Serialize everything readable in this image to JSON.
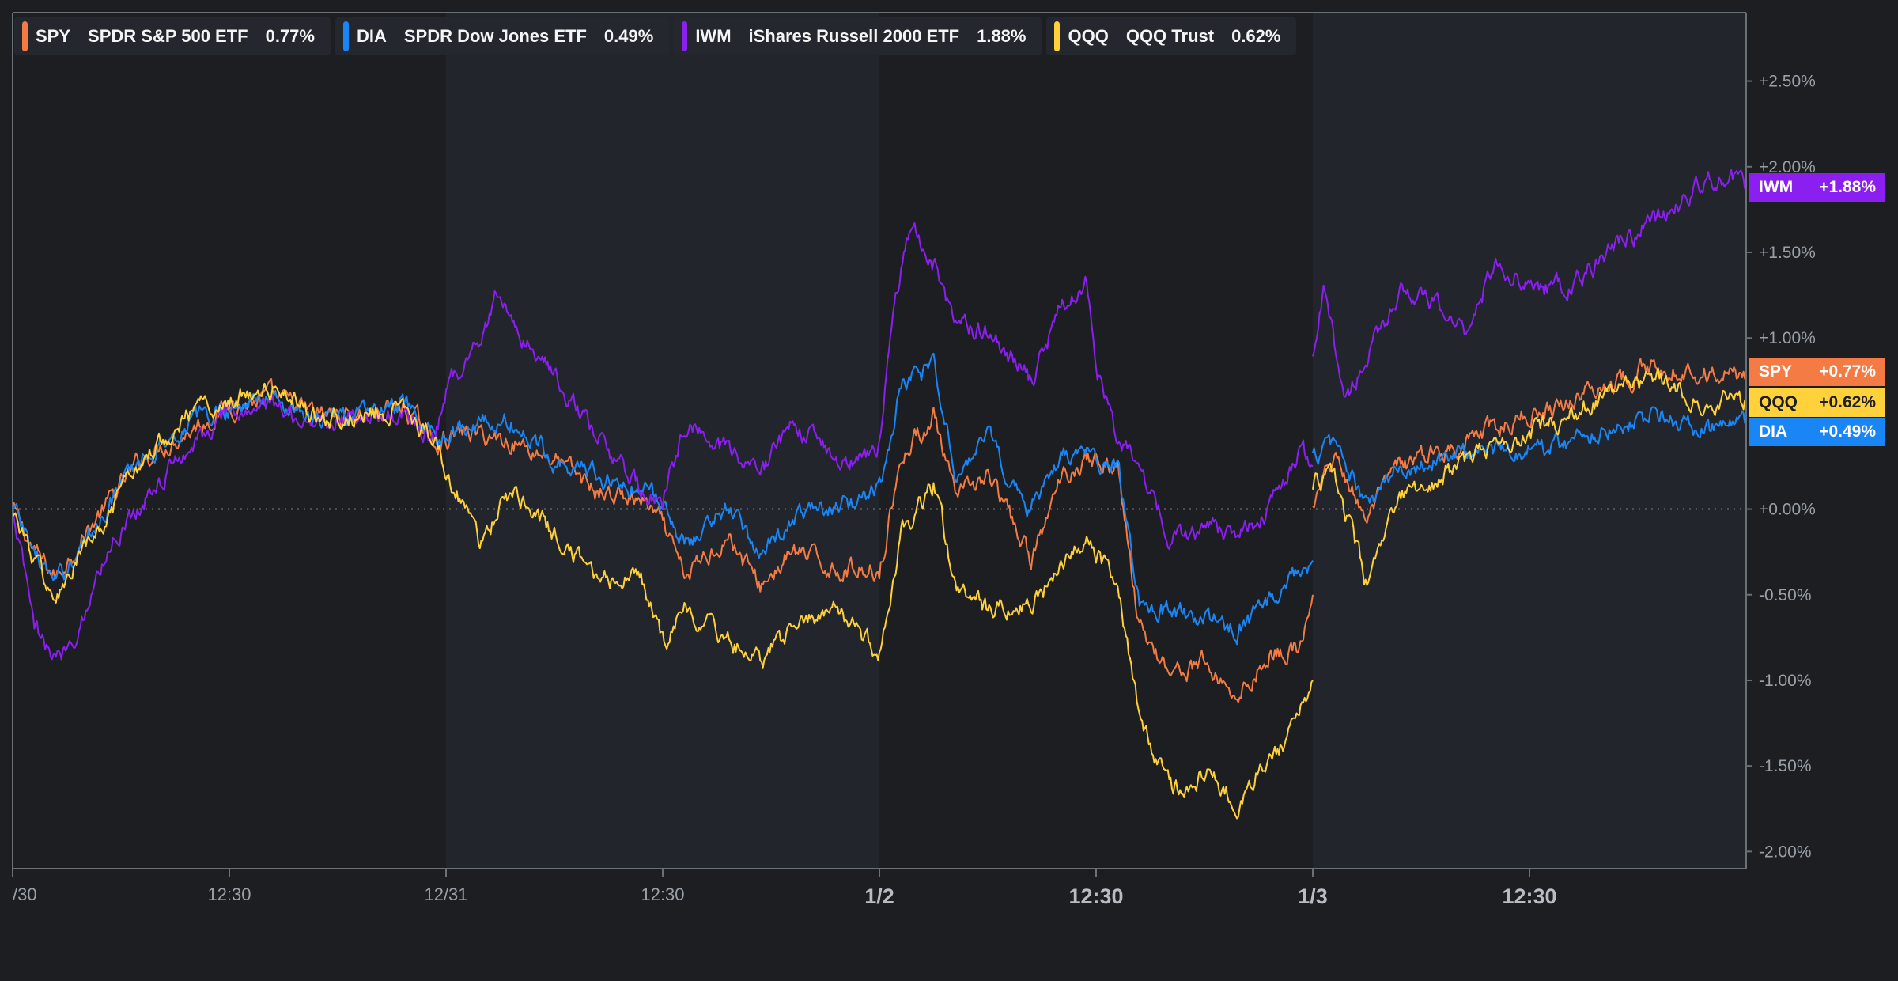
{
  "legend": [
    {
      "ticker": "SPY",
      "name": "SPDR S&P 500 ETF",
      "change": "0.77%",
      "color": "#f47b43"
    },
    {
      "ticker": "DIA",
      "name": "SPDR Dow Jones ETF",
      "change": "0.49%",
      "color": "#1a86f5"
    },
    {
      "ticker": "IWM",
      "name": "iShares Russell 2000 ETF",
      "change": "1.88%",
      "color": "#8a1ff0"
    },
    {
      "ticker": "QQQ",
      "name": "QQQ Trust",
      "change": "0.62%",
      "color": "#ffd13a"
    }
  ],
  "end_labels": [
    {
      "ticker": "IWM",
      "value": "+1.88%",
      "color": "#8a1ff0",
      "text_color": "#ffffff",
      "y_value": 1.88
    },
    {
      "ticker": "SPY",
      "value": "+0.77%",
      "color": "#f47b43",
      "text_color": "#ffffff",
      "y_value": 0.8
    },
    {
      "ticker": "QQQ",
      "value": "+0.62%",
      "color": "#ffd13a",
      "text_color": "#1c1e22",
      "y_value": 0.62
    },
    {
      "ticker": "DIA",
      "value": "+0.49%",
      "color": "#1a86f5",
      "text_color": "#ffffff",
      "y_value": 0.45
    }
  ],
  "chart_data": {
    "type": "line",
    "title": "",
    "xlabel": "",
    "ylabel": "",
    "ylim": [
      -2.1,
      2.9
    ],
    "y_ticks": [
      {
        "value": 2.5,
        "label": "+2.50%"
      },
      {
        "value": 2.0,
        "label": "+2.00%"
      },
      {
        "value": 1.5,
        "label": "+1.50%"
      },
      {
        "value": 1.0,
        "label": "+1.00%"
      },
      {
        "value": 0.0,
        "label": "+0.00%"
      },
      {
        "value": -0.5,
        "label": "-0.50%"
      },
      {
        "value": -1.0,
        "label": "-1.00%"
      },
      {
        "value": -1.5,
        "label": "-1.50%"
      },
      {
        "value": -2.0,
        "label": "-2.00%"
      }
    ],
    "x_ticks": [
      {
        "x": 0,
        "label": "/30",
        "major": false
      },
      {
        "x": 1,
        "label": "12:30",
        "major": false
      },
      {
        "x": 2,
        "label": "12/31",
        "major": false
      },
      {
        "x": 3,
        "label": "12:30",
        "major": false
      },
      {
        "x": 4,
        "label": "1/2",
        "major": true
      },
      {
        "x": 5,
        "label": "12:30",
        "major": true
      },
      {
        "x": 6,
        "label": "1/3",
        "major": true
      },
      {
        "x": 7,
        "label": "12:30",
        "major": true
      }
    ],
    "x_note": "x in half-session units: 0=12/30 open, 2=12/31 open, 4=1/2 open, 6=1/3 open",
    "session_shading": [
      [
        2,
        4
      ],
      [
        6,
        8
      ]
    ],
    "baseline": 0,
    "series": [
      {
        "name": "SPY",
        "color": "#f47b43",
        "points": [
          [
            0.0,
            0.0
          ],
          [
            0.1,
            -0.25
          ],
          [
            0.2,
            -0.4
          ],
          [
            0.3,
            -0.2
          ],
          [
            0.45,
            0.05
          ],
          [
            0.6,
            0.3
          ],
          [
            0.8,
            0.45
          ],
          [
            1.0,
            0.6
          ],
          [
            1.2,
            0.65
          ],
          [
            1.4,
            0.55
          ],
          [
            1.6,
            0.55
          ],
          [
            1.8,
            0.6
          ],
          [
            1.95,
            0.4
          ],
          [
            2.1,
            0.45
          ],
          [
            2.3,
            0.4
          ],
          [
            2.5,
            0.3
          ],
          [
            2.7,
            0.1
          ],
          [
            2.9,
            0.05
          ],
          [
            3.0,
            -0.1
          ],
          [
            3.1,
            -0.4
          ],
          [
            3.3,
            -0.15
          ],
          [
            3.45,
            -0.45
          ],
          [
            3.6,
            -0.25
          ],
          [
            3.8,
            -0.35
          ],
          [
            4.0,
            -0.35
          ],
          [
            4.1,
            0.3
          ],
          [
            4.25,
            0.55
          ],
          [
            4.35,
            0.05
          ],
          [
            4.5,
            0.2
          ],
          [
            4.7,
            -0.3
          ],
          [
            4.85,
            0.2
          ],
          [
            4.95,
            0.3
          ],
          [
            5.1,
            0.25
          ],
          [
            5.2,
            -0.7
          ],
          [
            5.35,
            -0.95
          ],
          [
            5.5,
            -0.9
          ],
          [
            5.65,
            -1.1
          ],
          [
            5.8,
            -0.85
          ],
          [
            5.95,
            -0.8
          ],
          [
            6.0,
            -0.5
          ]
        ]
      },
      {
        "name": "SPY",
        "color": "#f47b43",
        "points": [
          [
            6.0,
            0.0
          ],
          [
            6.1,
            0.3
          ],
          [
            6.25,
            -0.05
          ],
          [
            6.4,
            0.25
          ],
          [
            6.6,
            0.35
          ],
          [
            6.8,
            0.45
          ],
          [
            7.0,
            0.55
          ],
          [
            7.2,
            0.65
          ],
          [
            7.4,
            0.75
          ],
          [
            7.6,
            0.85
          ],
          [
            7.8,
            0.8
          ],
          [
            8.0,
            0.77
          ]
        ]
      },
      {
        "name": "DIA",
        "color": "#1a86f5",
        "points": [
          [
            0.0,
            0.0
          ],
          [
            0.1,
            -0.25
          ],
          [
            0.2,
            -0.45
          ],
          [
            0.3,
            -0.25
          ],
          [
            0.45,
            0.05
          ],
          [
            0.6,
            0.3
          ],
          [
            0.8,
            0.5
          ],
          [
            1.0,
            0.6
          ],
          [
            1.2,
            0.65
          ],
          [
            1.4,
            0.55
          ],
          [
            1.6,
            0.55
          ],
          [
            1.8,
            0.6
          ],
          [
            1.95,
            0.4
          ],
          [
            2.1,
            0.5
          ],
          [
            2.3,
            0.5
          ],
          [
            2.5,
            0.3
          ],
          [
            2.7,
            0.2
          ],
          [
            2.9,
            0.1
          ],
          [
            3.0,
            0.05
          ],
          [
            3.1,
            -0.2
          ],
          [
            3.3,
            0.0
          ],
          [
            3.45,
            -0.25
          ],
          [
            3.6,
            -0.05
          ],
          [
            3.8,
            0.0
          ],
          [
            4.0,
            0.1
          ],
          [
            4.1,
            0.75
          ],
          [
            4.25,
            0.8
          ],
          [
            4.35,
            0.25
          ],
          [
            4.5,
            0.4
          ],
          [
            4.7,
            0.0
          ],
          [
            4.85,
            0.3
          ],
          [
            4.95,
            0.3
          ],
          [
            5.1,
            0.25
          ],
          [
            5.2,
            -0.55
          ],
          [
            5.35,
            -0.6
          ],
          [
            5.5,
            -0.65
          ],
          [
            5.65,
            -0.7
          ],
          [
            5.8,
            -0.55
          ],
          [
            5.95,
            -0.35
          ],
          [
            6.0,
            -0.3
          ]
        ]
      },
      {
        "name": "DIA",
        "color": "#1a86f5",
        "points": [
          [
            6.0,
            0.3
          ],
          [
            6.1,
            0.4
          ],
          [
            6.25,
            0.0
          ],
          [
            6.4,
            0.25
          ],
          [
            6.6,
            0.3
          ],
          [
            6.8,
            0.35
          ],
          [
            7.0,
            0.35
          ],
          [
            7.2,
            0.4
          ],
          [
            7.4,
            0.5
          ],
          [
            7.6,
            0.55
          ],
          [
            7.8,
            0.45
          ],
          [
            8.0,
            0.49
          ]
        ]
      },
      {
        "name": "IWM",
        "color": "#8a1ff0",
        "points": [
          [
            0.0,
            0.0
          ],
          [
            0.1,
            -0.7
          ],
          [
            0.2,
            -0.9
          ],
          [
            0.3,
            -0.7
          ],
          [
            0.45,
            -0.2
          ],
          [
            0.6,
            0.05
          ],
          [
            0.8,
            0.35
          ],
          [
            1.0,
            0.55
          ],
          [
            1.2,
            0.6
          ],
          [
            1.4,
            0.5
          ],
          [
            1.6,
            0.55
          ],
          [
            1.8,
            0.55
          ],
          [
            1.95,
            0.4
          ],
          [
            2.0,
            0.7
          ],
          [
            2.15,
            1.0
          ],
          [
            2.25,
            1.3
          ],
          [
            2.35,
            1.0
          ],
          [
            2.5,
            0.8
          ],
          [
            2.7,
            0.4
          ],
          [
            2.9,
            0.1
          ],
          [
            3.0,
            0.05
          ],
          [
            3.1,
            0.5
          ],
          [
            3.3,
            0.35
          ],
          [
            3.45,
            0.2
          ],
          [
            3.6,
            0.5
          ],
          [
            3.8,
            0.3
          ],
          [
            4.0,
            0.35
          ],
          [
            4.05,
            1.05
          ],
          [
            4.15,
            1.7
          ],
          [
            4.25,
            1.45
          ],
          [
            4.35,
            1.05
          ],
          [
            4.5,
            1.05
          ],
          [
            4.7,
            0.75
          ],
          [
            4.85,
            1.2
          ],
          [
            4.95,
            1.35
          ],
          [
            5.0,
            0.8
          ],
          [
            5.1,
            0.4
          ],
          [
            5.2,
            0.25
          ],
          [
            5.35,
            -0.2
          ],
          [
            5.5,
            -0.1
          ],
          [
            5.65,
            -0.15
          ],
          [
            5.8,
            0.0
          ],
          [
            5.95,
            0.35
          ],
          [
            6.0,
            0.25
          ]
        ]
      },
      {
        "name": "IWM",
        "color": "#8a1ff0",
        "points": [
          [
            6.0,
            0.85
          ],
          [
            6.05,
            1.25
          ],
          [
            6.15,
            0.65
          ],
          [
            6.3,
            1.0
          ],
          [
            6.4,
            1.3
          ],
          [
            6.55,
            1.2
          ],
          [
            6.7,
            1.05
          ],
          [
            6.85,
            1.45
          ],
          [
            7.0,
            1.3
          ],
          [
            7.2,
            1.3
          ],
          [
            7.4,
            1.55
          ],
          [
            7.6,
            1.7
          ],
          [
            7.75,
            1.85
          ],
          [
            7.9,
            1.95
          ],
          [
            8.0,
            1.88
          ]
        ]
      },
      {
        "name": "QQQ",
        "color": "#ffd13a",
        "points": [
          [
            0.0,
            0.0
          ],
          [
            0.1,
            -0.3
          ],
          [
            0.2,
            -0.55
          ],
          [
            0.3,
            -0.3
          ],
          [
            0.45,
            -0.05
          ],
          [
            0.6,
            0.3
          ],
          [
            0.8,
            0.55
          ],
          [
            1.0,
            0.65
          ],
          [
            1.2,
            0.7
          ],
          [
            1.4,
            0.55
          ],
          [
            1.6,
            0.55
          ],
          [
            1.8,
            0.6
          ],
          [
            1.95,
            0.4
          ],
          [
            2.05,
            0.1
          ],
          [
            2.15,
            -0.2
          ],
          [
            2.3,
            0.1
          ],
          [
            2.5,
            -0.15
          ],
          [
            2.7,
            -0.4
          ],
          [
            2.9,
            -0.4
          ],
          [
            3.0,
            -0.8
          ],
          [
            3.1,
            -0.6
          ],
          [
            3.3,
            -0.75
          ],
          [
            3.45,
            -0.9
          ],
          [
            3.6,
            -0.7
          ],
          [
            3.8,
            -0.6
          ],
          [
            4.0,
            -0.85
          ],
          [
            4.1,
            -0.15
          ],
          [
            4.25,
            0.15
          ],
          [
            4.35,
            -0.45
          ],
          [
            4.5,
            -0.6
          ],
          [
            4.7,
            -0.55
          ],
          [
            4.85,
            -0.35
          ],
          [
            4.95,
            -0.15
          ],
          [
            5.1,
            -0.45
          ],
          [
            5.2,
            -1.2
          ],
          [
            5.35,
            -1.65
          ],
          [
            5.5,
            -1.55
          ],
          [
            5.65,
            -1.7
          ],
          [
            5.8,
            -1.45
          ],
          [
            5.9,
            -1.3
          ],
          [
            6.0,
            -1.0
          ]
        ]
      },
      {
        "name": "QQQ",
        "color": "#ffd13a",
        "points": [
          [
            6.0,
            0.15
          ],
          [
            6.1,
            0.2
          ],
          [
            6.25,
            -0.45
          ],
          [
            6.4,
            0.05
          ],
          [
            6.6,
            0.2
          ],
          [
            6.8,
            0.35
          ],
          [
            7.0,
            0.45
          ],
          [
            7.2,
            0.55
          ],
          [
            7.4,
            0.7
          ],
          [
            7.6,
            0.75
          ],
          [
            7.8,
            0.65
          ],
          [
            8.0,
            0.62
          ]
        ]
      }
    ]
  }
}
